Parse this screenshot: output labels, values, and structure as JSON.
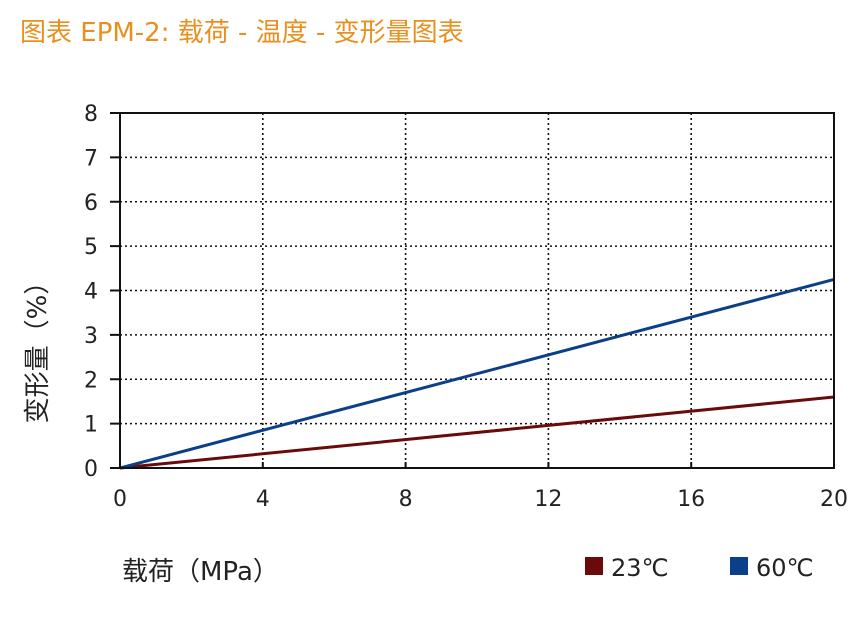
{
  "title": "图表 EPM-2: 载荷 - 温度 - 变形量图表",
  "chart_data": {
    "type": "line",
    "xlabel": "载荷（MPa）",
    "ylabel": "变形量（%）",
    "xlim": [
      0,
      20
    ],
    "ylim": [
      0,
      8
    ],
    "x_ticks": [
      "0",
      "4",
      "8",
      "12",
      "16",
      "20"
    ],
    "y_ticks": [
      "0",
      "1",
      "2",
      "3",
      "4",
      "5",
      "6",
      "7",
      "8"
    ],
    "grid": true,
    "legend_position": "bottom-right",
    "series": [
      {
        "name": "23℃",
        "color": "#6b0a0a",
        "x": [
          0,
          20
        ],
        "y": [
          0,
          1.6
        ]
      },
      {
        "name": "60℃",
        "color": "#0c3f8a",
        "x": [
          0,
          20
        ],
        "y": [
          0,
          4.25
        ]
      }
    ]
  }
}
